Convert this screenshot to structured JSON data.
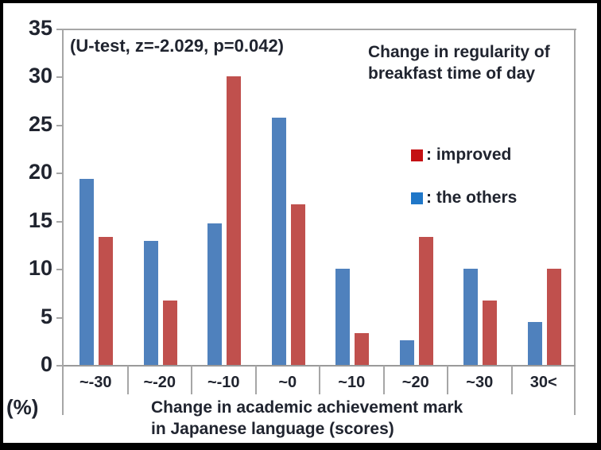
{
  "figure": {
    "background": "#ffffff",
    "frame_color": "#000000",
    "text_color": "#20242f",
    "axis_color": "#a6a6a6"
  },
  "chart_data": {
    "type": "bar",
    "title": "Change in regularity of breakfast time of day",
    "title_lines": [
      "Change in regularity of",
      "breakfast time of day"
    ],
    "annotation": "(U-test, z=-2.029, p=0.042)",
    "categories": [
      "~-30",
      "~-20",
      "~-10",
      "~0",
      "~10",
      "~20",
      "~30",
      "30<"
    ],
    "series": [
      {
        "name": "the others",
        "slot": 0,
        "color": "#4f81bd",
        "values": [
          19.4,
          12.9,
          14.7,
          25.7,
          10.0,
          2.6,
          10.0,
          4.5
        ]
      },
      {
        "name": "improved",
        "slot": 1,
        "color": "#c0504d",
        "values": [
          13.3,
          6.7,
          30.0,
          16.7,
          3.3,
          13.3,
          6.7,
          10.0
        ]
      }
    ],
    "legend": [
      {
        "label": ": improved",
        "swatch_color": "#c41114"
      },
      {
        "label": ": the others",
        "swatch_color": "#2077c8"
      }
    ],
    "legend_position": "inside-upper-right",
    "y_ticks": [
      0,
      5,
      10,
      15,
      20,
      25,
      30,
      35
    ],
    "ylim": [
      0,
      35
    ],
    "ylabel": "(%)",
    "xlabel": "Change in academic achievement mark in Japanese language (scores)",
    "xlabel_lines": [
      "Change in academic achievement mark",
      "in Japanese language (scores)"
    ],
    "grid": false
  }
}
